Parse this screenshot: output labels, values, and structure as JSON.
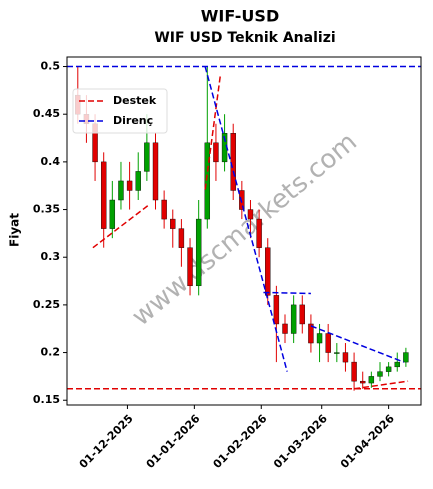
{
  "chart_data": {
    "type": "candlestick",
    "title": "WIF-USD",
    "subtitle": "WIF USD Teknik Analizi",
    "y_label": "Fiyat",
    "watermark": "www.dscmarkets.com",
    "up_color": "#00a000",
    "down_color": "#e00000",
    "xlim": [
      "2025-11-03",
      "2026-04-16"
    ],
    "xticks": [
      {
        "value": "2025-12-01",
        "label": "01-12-2025"
      },
      {
        "value": "2026-01-01",
        "label": "01-01-2026"
      },
      {
        "value": "2026-02-01",
        "label": "01-02-2026"
      },
      {
        "value": "2026-03-01",
        "label": "01-03-2026"
      },
      {
        "value": "2026-04-01",
        "label": "01-04-2026"
      }
    ],
    "ylim": [
      0.145,
      0.51
    ],
    "yticks": [
      0.15,
      0.2,
      0.25,
      0.3,
      0.35,
      0.4,
      0.45,
      0.5
    ],
    "legend_position": "upper left",
    "candles": {
      "x": [
        "2025-11-08",
        "2025-11-12",
        "2025-11-16",
        "2025-11-20",
        "2025-11-24",
        "2025-11-28",
        "2025-12-02",
        "2025-12-06",
        "2025-12-10",
        "2025-12-14",
        "2025-12-18",
        "2025-12-22",
        "2025-12-26",
        "2025-12-30",
        "2026-01-03",
        "2026-01-07",
        "2026-01-11",
        "2026-01-15",
        "2026-01-19",
        "2026-01-23",
        "2026-01-27",
        "2026-01-31",
        "2026-02-04",
        "2026-02-08",
        "2026-02-12",
        "2026-02-16",
        "2026-02-20",
        "2026-02-24",
        "2026-02-28",
        "2026-03-04",
        "2026-03-08",
        "2026-03-12",
        "2026-03-16",
        "2026-03-20",
        "2026-03-24",
        "2026-03-28",
        "2026-04-01",
        "2026-04-05",
        "2026-04-09"
      ],
      "open": [
        0.47,
        0.45,
        0.44,
        0.4,
        0.33,
        0.36,
        0.38,
        0.37,
        0.39,
        0.42,
        0.36,
        0.34,
        0.33,
        0.31,
        0.27,
        0.34,
        0.42,
        0.4,
        0.43,
        0.37,
        0.35,
        0.34,
        0.31,
        0.26,
        0.23,
        0.22,
        0.25,
        0.23,
        0.21,
        0.22,
        0.2,
        0.2,
        0.19,
        0.17,
        0.168,
        0.175,
        0.18,
        0.185,
        0.19
      ],
      "high": [
        0.5,
        0.47,
        0.45,
        0.41,
        0.38,
        0.4,
        0.4,
        0.41,
        0.45,
        0.43,
        0.37,
        0.35,
        0.34,
        0.32,
        0.36,
        0.5,
        0.44,
        0.45,
        0.44,
        0.38,
        0.36,
        0.35,
        0.32,
        0.27,
        0.24,
        0.26,
        0.26,
        0.24,
        0.23,
        0.23,
        0.21,
        0.21,
        0.2,
        0.18,
        0.18,
        0.19,
        0.19,
        0.2,
        0.205
      ],
      "low": [
        0.44,
        0.42,
        0.38,
        0.31,
        0.32,
        0.35,
        0.35,
        0.36,
        0.38,
        0.35,
        0.33,
        0.31,
        0.29,
        0.26,
        0.26,
        0.33,
        0.38,
        0.39,
        0.36,
        0.34,
        0.32,
        0.3,
        0.25,
        0.19,
        0.21,
        0.21,
        0.22,
        0.2,
        0.19,
        0.19,
        0.19,
        0.18,
        0.16,
        0.162,
        0.163,
        0.17,
        0.175,
        0.18,
        0.185
      ],
      "close": [
        0.45,
        0.44,
        0.4,
        0.33,
        0.36,
        0.38,
        0.37,
        0.39,
        0.42,
        0.36,
        0.34,
        0.33,
        0.31,
        0.27,
        0.34,
        0.42,
        0.4,
        0.43,
        0.37,
        0.35,
        0.34,
        0.31,
        0.26,
        0.23,
        0.22,
        0.25,
        0.23,
        0.21,
        0.22,
        0.2,
        0.2,
        0.19,
        0.17,
        0.168,
        0.175,
        0.18,
        0.185,
        0.19,
        0.2
      ]
    },
    "support": {
      "name": "Destek",
      "color": "#e00000",
      "level": 0.162,
      "segments": [
        {
          "x": [
            "2025-11-15",
            "2025-12-11"
          ],
          "y": [
            0.31,
            0.355
          ]
        },
        {
          "x": [
            "2026-01-06",
            "2026-01-13"
          ],
          "y": [
            0.371,
            0.49
          ]
        },
        {
          "x": [
            "2026-03-16",
            "2026-04-10"
          ],
          "y": [
            0.162,
            0.17
          ]
        }
      ]
    },
    "resistance": {
      "name": "Direnç",
      "color": "#0000e0",
      "level": 0.5,
      "segments": [
        {
          "x": [
            "2026-01-06",
            "2026-02-13"
          ],
          "y": [
            0.5,
            0.18
          ]
        },
        {
          "x": [
            "2026-02-02",
            "2026-02-24"
          ],
          "y": [
            0.263,
            0.262
          ]
        },
        {
          "x": [
            "2026-02-24",
            "2026-04-08"
          ],
          "y": [
            0.228,
            0.19
          ]
        }
      ]
    }
  }
}
